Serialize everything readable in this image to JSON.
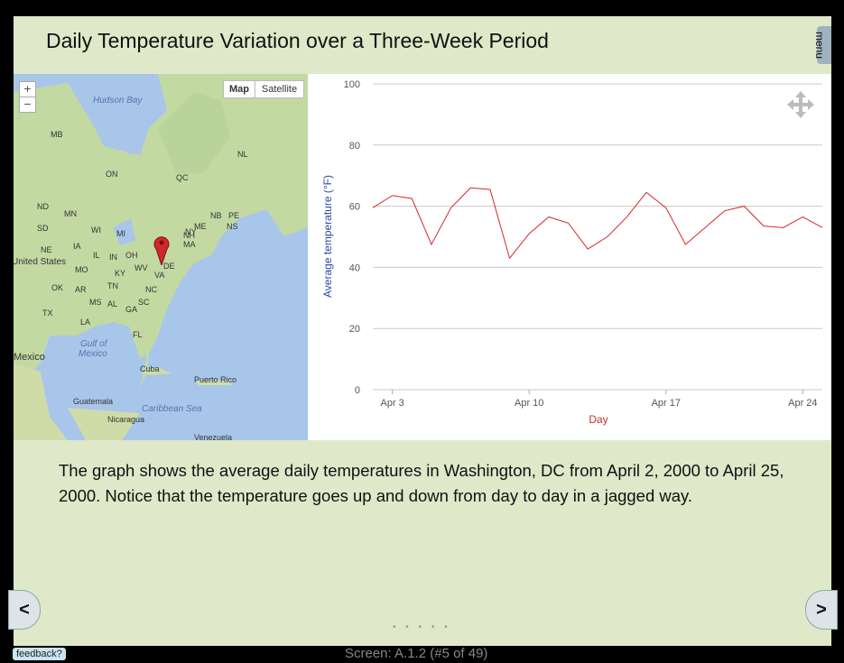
{
  "title": "Daily Temperature Variation over a Three-Week Period",
  "menu_label": "menu",
  "map": {
    "map_button": "Map",
    "satellite_button": "Satellite",
    "zoom_in": "+",
    "zoom_out": "−",
    "labels": {
      "hudson_bay": "Hudson Bay",
      "mb": "MB",
      "on": "ON",
      "qc": "QC",
      "nl": "NL",
      "nb": "NB",
      "pe": "PE",
      "ns": "NS",
      "nd": "ND",
      "mn": "MN",
      "sd": "SD",
      "wi": "WI",
      "mi": "MI",
      "ny": "NY",
      "me": "ME",
      "nh": "NH",
      "ma": "MA",
      "ne": "NE",
      "ia": "IA",
      "il": "IL",
      "in": "IN",
      "oh": "OH",
      "united_states": "United States",
      "mo": "MO",
      "ky": "KY",
      "wv": "WV",
      "va": "VA",
      "de": "DE",
      "ok": "OK",
      "ar": "AR",
      "tn": "TN",
      "nc": "NC",
      "ms": "MS",
      "al": "AL",
      "sc": "SC",
      "tx": "TX",
      "ga": "GA",
      "la": "LA",
      "fl": "FL",
      "gulf": "Gulf of",
      "mexico_water": "Mexico",
      "mexico": "Mexico",
      "cuba": "Cuba",
      "puerto_rico": "Puerto Rico",
      "guatemala": "Guatemala",
      "caribbean": "Caribbean Sea",
      "nicaragua": "Nicaragua",
      "venezuela": "Venezuela"
    }
  },
  "chart_data": {
    "type": "line",
    "xlabel": "Day",
    "ylabel": "Average temperature (°F)",
    "ylim": [
      0,
      100
    ],
    "yticks": [
      0,
      20,
      40,
      60,
      80,
      100
    ],
    "xticks": [
      {
        "day": 3,
        "label": "Apr 3"
      },
      {
        "day": 10,
        "label": "Apr 10"
      },
      {
        "day": 17,
        "label": "Apr 17"
      },
      {
        "day": 24,
        "label": "Apr 24"
      }
    ],
    "xlim": [
      2,
      25
    ],
    "x": [
      2,
      3,
      4,
      5,
      6,
      7,
      8,
      9,
      10,
      11,
      12,
      13,
      14,
      15,
      16,
      17,
      18,
      19,
      20,
      21,
      22,
      23,
      24,
      25
    ],
    "series": [
      {
        "values": [
          59.5,
          63.5,
          62.5,
          47.5,
          59.5,
          66,
          65.5,
          43,
          51,
          56.5,
          54.5,
          46,
          50,
          56.5,
          64.5,
          59.5,
          47.5,
          53,
          58.5,
          60,
          53.5,
          53,
          56.5,
          53
        ]
      }
    ],
    "line_color": "#d62728",
    "grid": true
  },
  "description": "The graph shows the average daily temperatures in Washington, DC from April 2, 2000 to April 25, 2000. Notice that the temperature goes up and down from day to day in a jagged way.",
  "nav": {
    "prev": "<",
    "next": ">"
  },
  "dots": "• • • • •",
  "feedback": "feedback?",
  "screen_label": "Screen: A.1.2 (#5 of 49)"
}
